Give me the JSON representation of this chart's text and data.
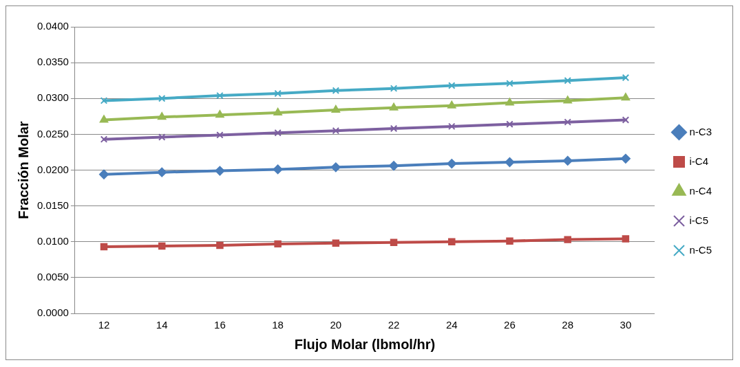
{
  "chart_data": {
    "type": "line",
    "xlabel": "Flujo Molar (lbmol/hr)",
    "ylabel": "Fracción Molar",
    "categories": [
      "12",
      "14",
      "16",
      "18",
      "20",
      "22",
      "24",
      "26",
      "28",
      "30"
    ],
    "series": [
      {
        "name": "n-C3",
        "color": "#4a7ebb",
        "marker": "diamond",
        "values": [
          0.0194,
          0.0197,
          0.0199,
          0.0201,
          0.0204,
          0.0206,
          0.0209,
          0.0211,
          0.0213,
          0.0216
        ]
      },
      {
        "name": "i-C4",
        "color": "#be4b48",
        "marker": "square",
        "values": [
          0.0093,
          0.0094,
          0.0095,
          0.0097,
          0.0098,
          0.0099,
          0.01,
          0.0101,
          0.0103,
          0.0104
        ]
      },
      {
        "name": "n-C4",
        "color": "#98b954",
        "marker": "triangle",
        "values": [
          0.027,
          0.0274,
          0.0277,
          0.028,
          0.0284,
          0.0287,
          0.029,
          0.0294,
          0.0297,
          0.0301
        ]
      },
      {
        "name": "i-C5",
        "color": "#7d60a0",
        "marker": "cross",
        "values": [
          0.0243,
          0.0246,
          0.0249,
          0.0252,
          0.0255,
          0.0258,
          0.0261,
          0.0264,
          0.0267,
          0.027
        ]
      },
      {
        "name": "n-C5",
        "color": "#46aac5",
        "marker": "cross",
        "values": [
          0.0297,
          0.03,
          0.0304,
          0.0307,
          0.0311,
          0.0314,
          0.0318,
          0.0321,
          0.0325,
          0.0329
        ]
      }
    ],
    "ylim": [
      0,
      0.04
    ],
    "yticks": [
      {
        "value": 0,
        "label": "0.0000"
      },
      {
        "value": 0.005,
        "label": "0.0050"
      },
      {
        "value": 0.01,
        "label": "0.0100"
      },
      {
        "value": 0.015,
        "label": "0.0150"
      },
      {
        "value": 0.02,
        "label": "0.0200"
      },
      {
        "value": 0.025,
        "label": "0.0250"
      },
      {
        "value": 0.03,
        "label": "0.0300"
      },
      {
        "value": 0.035,
        "label": "0.0350"
      },
      {
        "value": 0.04,
        "label": "0.0400"
      }
    ],
    "grid": "y",
    "legend": "right",
    "line_style": "solid"
  }
}
